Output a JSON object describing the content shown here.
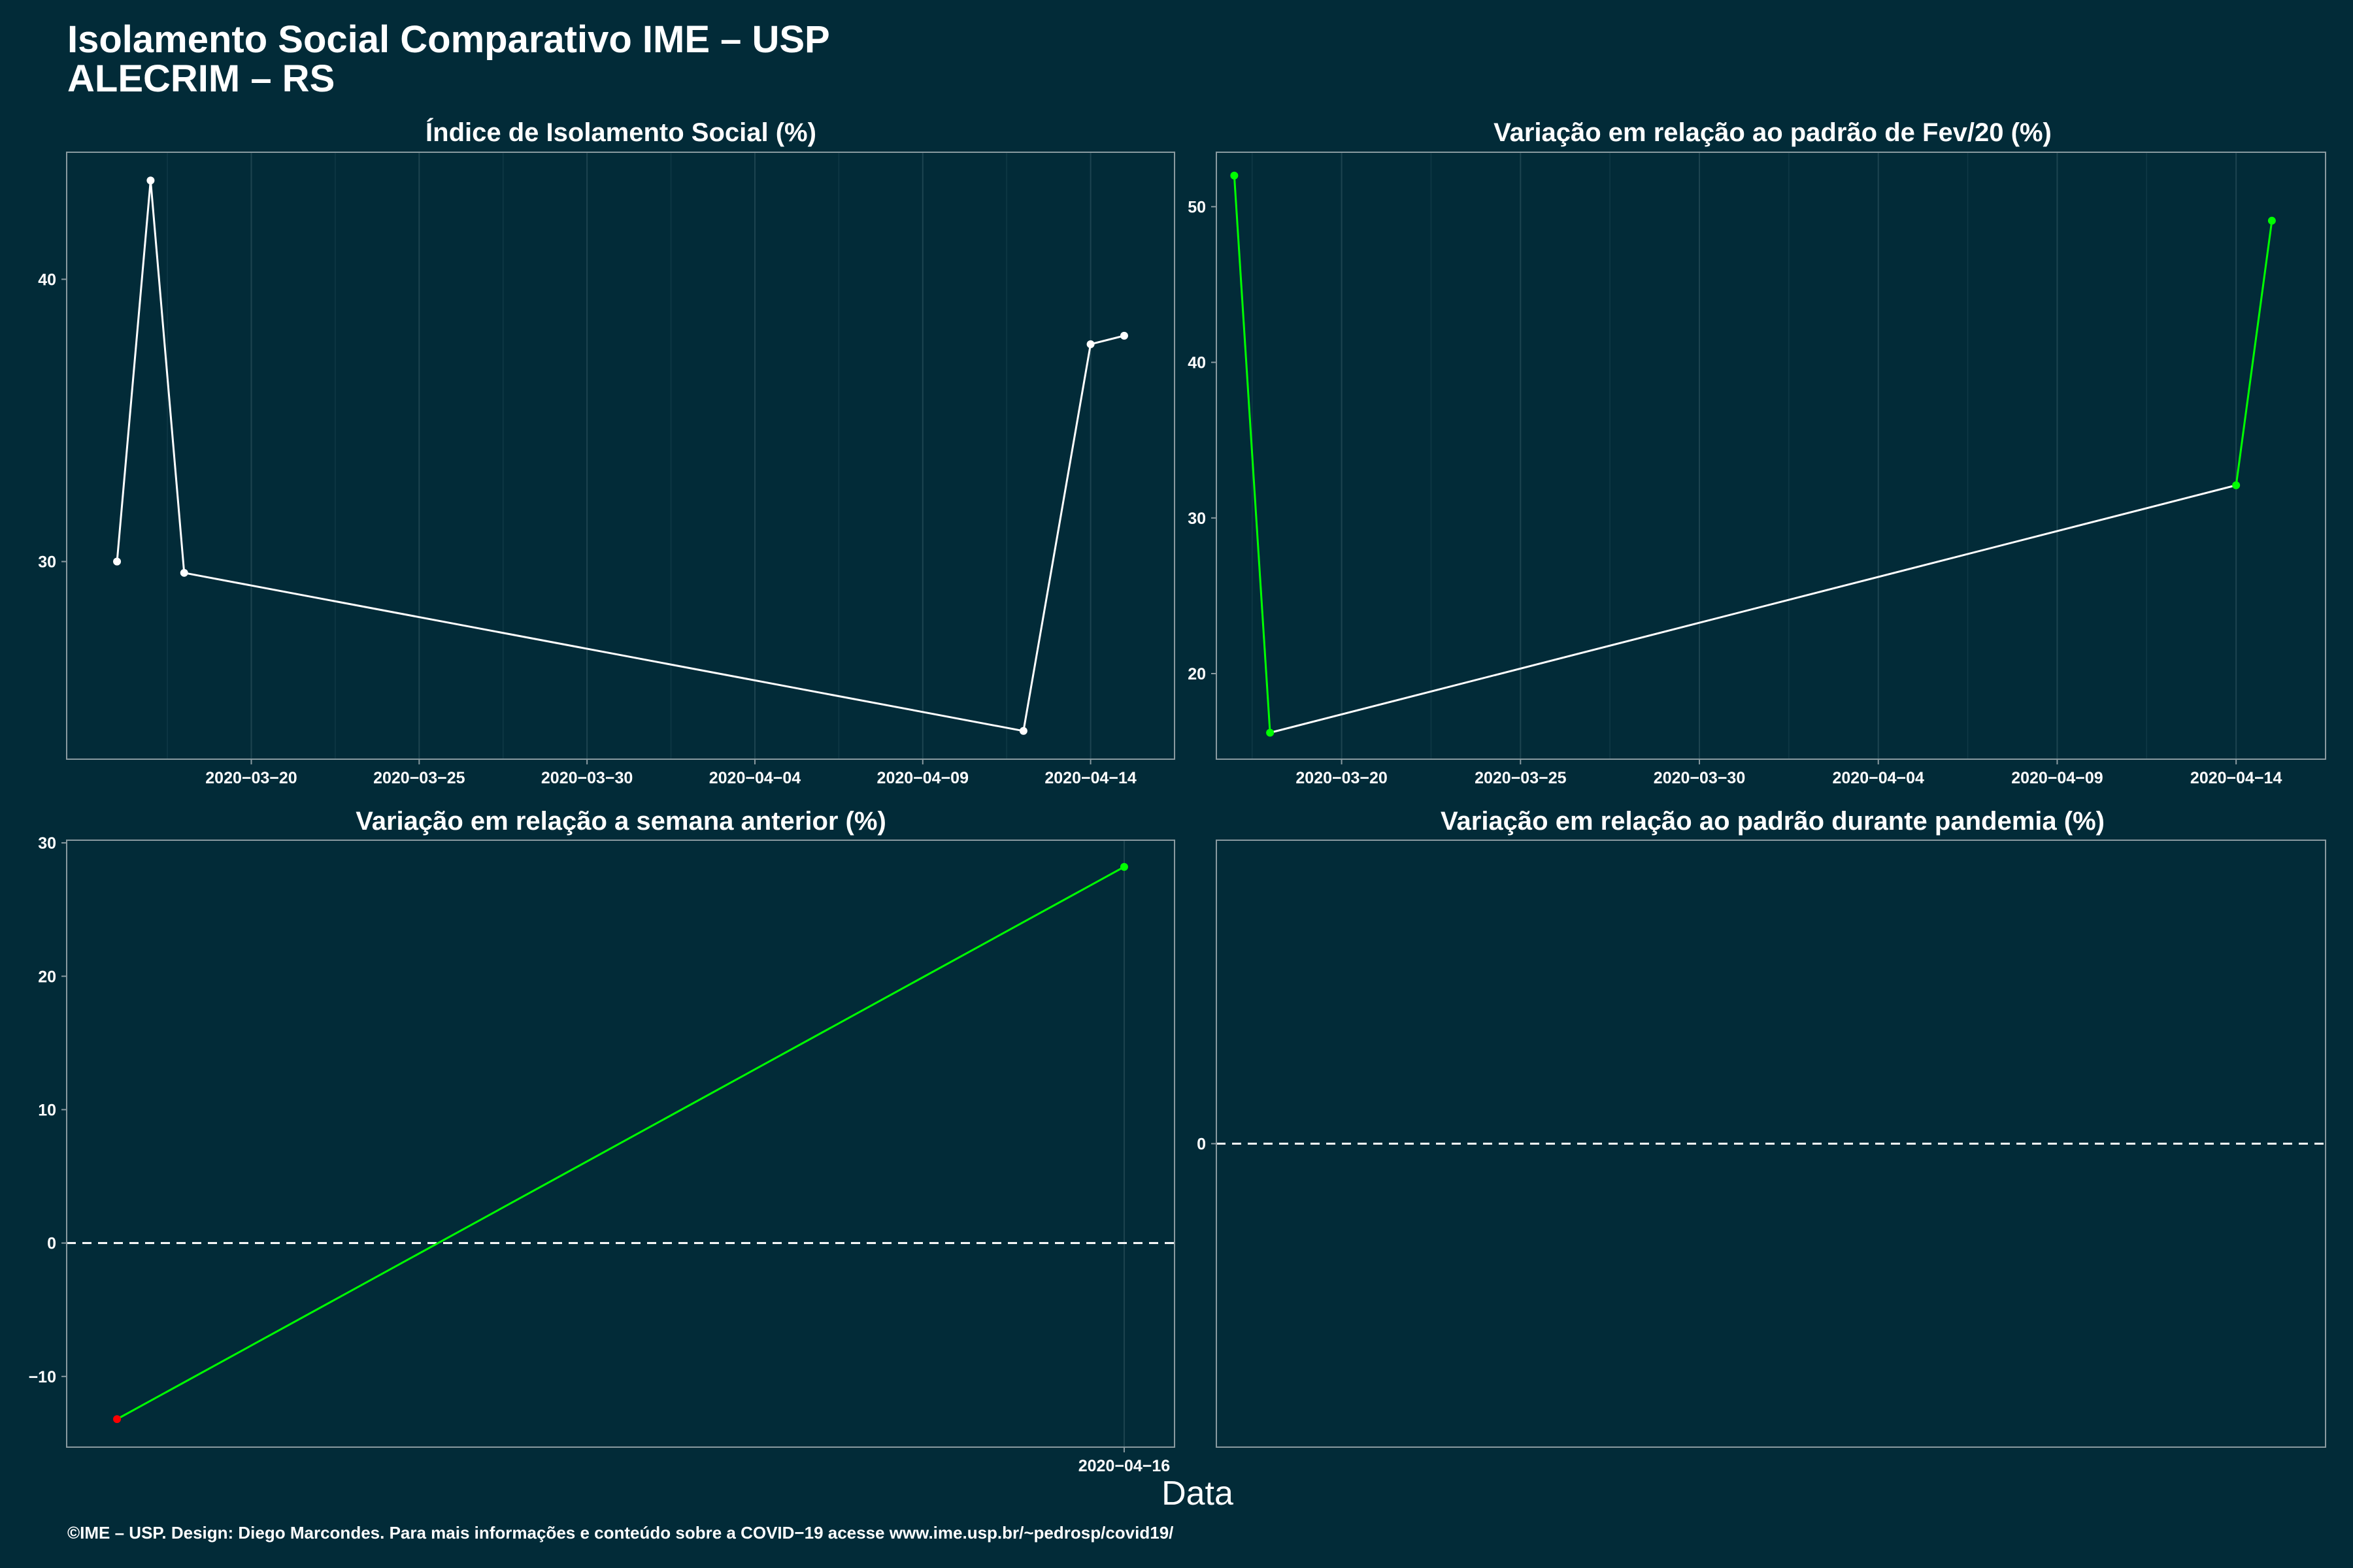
{
  "header": {
    "title_line1": "Isolamento Social Comparativo IME – USP",
    "title_line2": "ALECRIM – RS"
  },
  "xlabel": "Data",
  "caption": "©IME – USP. Design: Diego Marcondes. Para mais informações e conteúdo sobre a COVID−19 acesse www.ime.usp.br/~pedrosp/covid19/",
  "colors": {
    "background": "#022b38",
    "white": "#ffffff",
    "green": "#00ff00",
    "red": "#ff0000"
  },
  "chart_data": [
    {
      "id": "isolamento",
      "type": "line",
      "title": "Índice de Isolamento Social (%)",
      "x_ticks": [
        "2020-03-20",
        "2020-03-25",
        "2020-03-30",
        "2020-04-04",
        "2020-04-09",
        "2020-04-14"
      ],
      "y_ticks": [
        30,
        40
      ],
      "x": [
        "2020-03-16",
        "2020-03-17",
        "2020-03-18",
        "2020-04-12",
        "2020-04-14",
        "2020-04-15"
      ],
      "y": [
        30.0,
        43.5,
        29.6,
        24.0,
        37.7,
        38.0
      ],
      "point_colors": [
        "white",
        "white",
        "white",
        "white",
        "white",
        "white"
      ],
      "segment_colors": [
        "white",
        "white",
        "white",
        "white",
        "white"
      ],
      "xlim": [
        "2020-03-14.5",
        "2020-04-16.5"
      ],
      "ylim": [
        23.0,
        44.5
      ]
    },
    {
      "id": "fev20",
      "type": "line",
      "title": "Variação em relação ao padrão de Fev/20 (%)",
      "x_ticks": [
        "2020-03-20",
        "2020-03-25",
        "2020-03-30",
        "2020-04-04",
        "2020-04-09",
        "2020-04-14"
      ],
      "y_ticks": [
        20,
        30,
        40,
        50
      ],
      "x": [
        "2020-03-17",
        "2020-03-18",
        "2020-04-14",
        "2020-04-15"
      ],
      "y": [
        52.0,
        16.2,
        32.1,
        49.1
      ],
      "point_colors": [
        "green",
        "green",
        "green",
        "green"
      ],
      "segment_colors": [
        "green",
        "white",
        "green"
      ],
      "xlim": [
        "2020-03-16.5",
        "2020-04-16.5"
      ],
      "ylim": [
        14.5,
        53.5
      ]
    },
    {
      "id": "semana",
      "type": "line",
      "title": "Variação em relação a semana anterior (%)",
      "x_ticks": [
        "2020-04-16"
      ],
      "y_ticks": [
        -10,
        0,
        10,
        20,
        30
      ],
      "x": [
        "2020-04-01",
        "2020-04-16"
      ],
      "y": [
        -13.2,
        28.2
      ],
      "point_colors": [
        "red",
        "green"
      ],
      "segment_colors": [
        "green"
      ],
      "reference_line": 0,
      "xlim": [
        "2020-03-31.25",
        "2020-04-16.75"
      ],
      "ylim": [
        -15.3,
        30.2
      ]
    },
    {
      "id": "pandemia",
      "type": "line",
      "title": "Variação em relação ao padrão durante pandemia (%)",
      "x_ticks": [],
      "y_ticks": [
        0
      ],
      "x": [],
      "y": [],
      "point_colors": [],
      "segment_colors": [],
      "reference_line": 0,
      "ylim": [
        -1,
        1
      ]
    }
  ]
}
